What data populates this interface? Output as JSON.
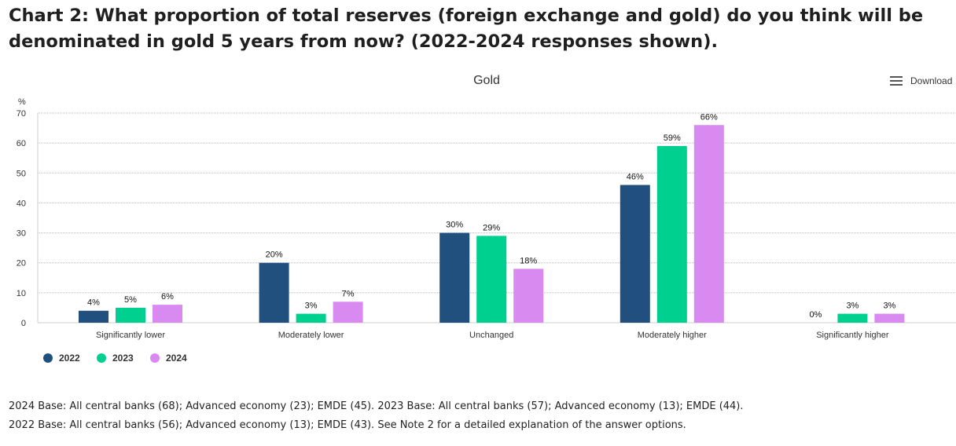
{
  "heading": {
    "line1": "Chart 2: What proportion of total reserves (foreign exchange and gold) do you think will be",
    "line2": "denominated in gold 5 years from now? (2022-2024 responses shown)."
  },
  "toolbar": {
    "download_label": "Download",
    "menu_icon": "hamburger-menu-icon"
  },
  "chart_data": {
    "type": "bar",
    "title": "Gold",
    "ylabel": "%",
    "xlabel": "",
    "ylim": [
      0,
      70
    ],
    "yticks": [
      0,
      10,
      20,
      30,
      40,
      50,
      60,
      70
    ],
    "grid": true,
    "legend_position": "bottom-left",
    "categories": [
      "Significantly lower",
      "Moderately lower",
      "Unchanged",
      "Moderately higher",
      "Significantly higher"
    ],
    "series": [
      {
        "name": "2022",
        "color": "#21507f",
        "values": [
          4,
          20,
          30,
          46,
          0
        ],
        "labels": [
          "4%",
          "20%",
          "30%",
          "46%",
          "0%"
        ]
      },
      {
        "name": "2023",
        "color": "#00d08f",
        "values": [
          5,
          3,
          29,
          59,
          3
        ],
        "labels": [
          "5%",
          "3%",
          "29%",
          "59%",
          "3%"
        ]
      },
      {
        "name": "2024",
        "color": "#d98af0",
        "values": [
          6,
          7,
          18,
          66,
          3
        ],
        "labels": [
          "6%",
          "7%",
          "18%",
          "66%",
          "3%"
        ]
      }
    ]
  },
  "notes": {
    "line1": "2024 Base: All central banks (68); Advanced economy (23); EMDE (45). 2023 Base: All central banks (57); Advanced economy (13); EMDE (44).",
    "line2": "2022 Base: All central banks (56); Advanced economy (13); EMDE (43). See Note 2 for a detailed explanation of the answer options."
  }
}
